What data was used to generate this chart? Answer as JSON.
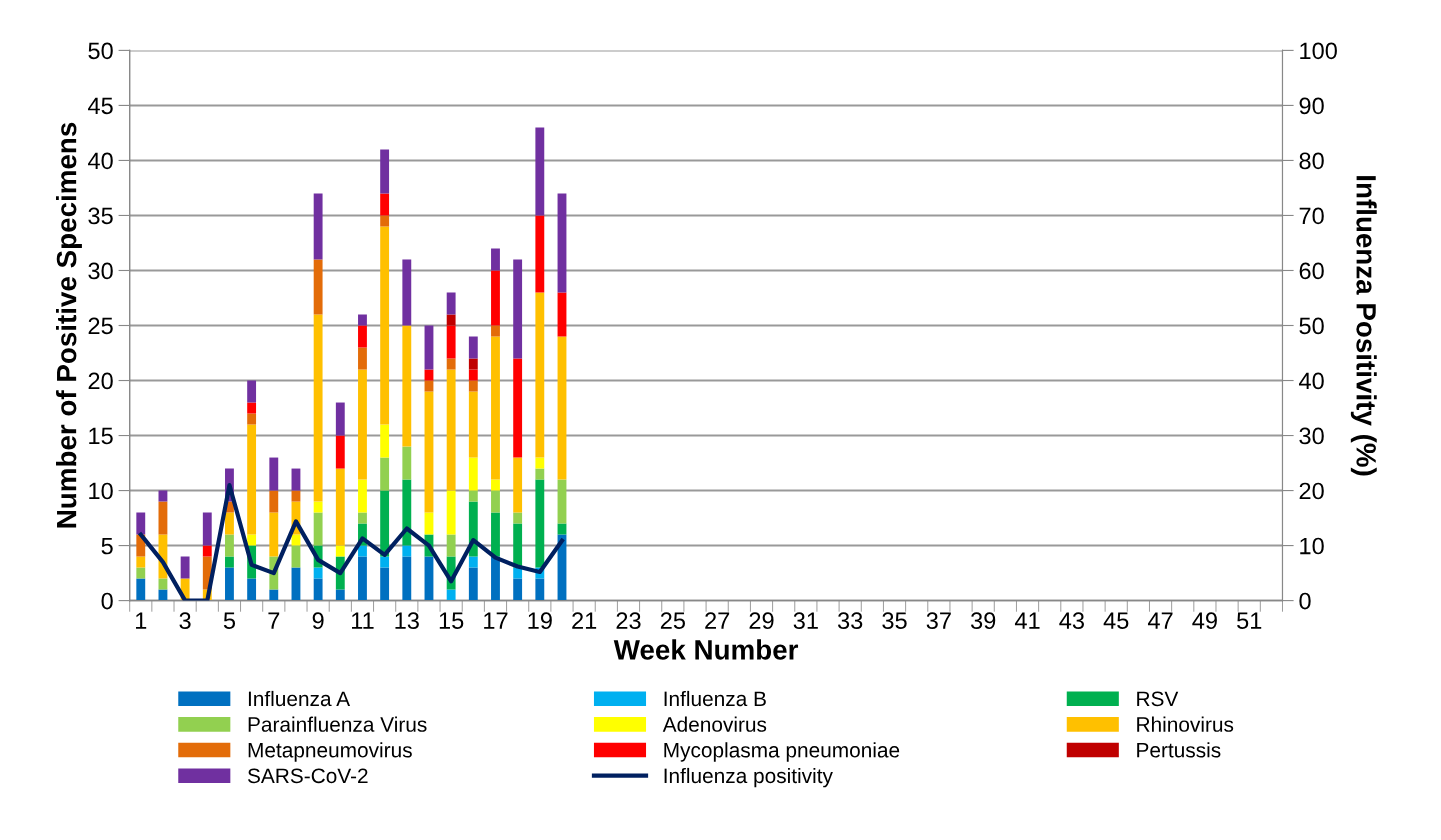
{
  "chart_data": {
    "type": "bar",
    "stacked": true,
    "xlabel": "Week Number",
    "ylabel": "Number of Positive Specimens",
    "y2label": "Influenza Positivity (%)",
    "categories": [
      "1",
      null,
      "3",
      null,
      "5",
      null,
      "7",
      null,
      "9",
      null,
      "11",
      null,
      "13",
      null,
      "15",
      null,
      "17",
      null,
      "19",
      null,
      "21",
      null,
      "23",
      null,
      "25",
      null,
      "27",
      null,
      "29",
      null,
      "31",
      null,
      "33",
      null,
      "35",
      null,
      "37",
      null,
      "39",
      null,
      "41",
      null,
      "43",
      null,
      "45",
      null,
      "47",
      null,
      "49",
      null,
      "51",
      null
    ],
    "ylim": [
      0,
      50
    ],
    "yticks": [
      0,
      5,
      10,
      15,
      20,
      25,
      30,
      35,
      40,
      45,
      50
    ],
    "y2lim": [
      0,
      100
    ],
    "y2ticks": [
      0,
      10,
      20,
      30,
      40,
      50,
      60,
      70,
      80,
      90,
      100
    ],
    "grid": "y",
    "legend": "bottom",
    "series": [
      {
        "name": "Influenza A",
        "color": "#0070c0",
        "values": [
          2,
          1,
          0,
          0,
          3,
          2,
          1,
          3,
          2,
          1,
          4,
          3,
          4,
          4,
          0,
          3,
          4,
          2,
          2,
          6,
          null,
          null,
          null,
          null,
          null,
          null,
          null,
          null,
          null,
          null,
          null,
          null,
          null,
          null,
          null,
          null,
          null,
          null,
          null,
          null,
          null,
          null,
          null,
          null,
          null,
          null,
          null,
          null,
          null,
          null,
          null,
          null
        ]
      },
      {
        "name": "Influenza B",
        "color": "#00b0f0",
        "values": [
          0,
          0,
          0,
          0,
          0,
          0,
          0,
          0,
          1,
          0,
          1,
          1,
          1,
          0,
          1,
          1,
          0,
          1,
          1,
          0,
          null,
          null,
          null,
          null,
          null,
          null,
          null,
          null,
          null,
          null,
          null,
          null,
          null,
          null,
          null,
          null,
          null,
          null,
          null,
          null,
          null,
          null,
          null,
          null,
          null,
          null,
          null,
          null,
          null,
          null,
          null,
          null
        ]
      },
      {
        "name": "RSV",
        "color": "#00b050",
        "values": [
          0,
          0,
          0,
          0,
          1,
          3,
          0,
          0,
          2,
          3,
          2,
          6,
          6,
          2,
          3,
          5,
          4,
          4,
          8,
          1,
          null,
          null,
          null,
          null,
          null,
          null,
          null,
          null,
          null,
          null,
          null,
          null,
          null,
          null,
          null,
          null,
          null,
          null,
          null,
          null,
          null,
          null,
          null,
          null,
          null,
          null,
          null,
          null,
          null,
          null,
          null,
          null
        ]
      },
      {
        "name": "Parainfluenza Virus",
        "color": "#92d050",
        "values": [
          1,
          1,
          0,
          0,
          2,
          0,
          3,
          2,
          3,
          0,
          1,
          3,
          3,
          0,
          2,
          1,
          2,
          1,
          1,
          4,
          null,
          null,
          null,
          null,
          null,
          null,
          null,
          null,
          null,
          null,
          null,
          null,
          null,
          null,
          null,
          null,
          null,
          null,
          null,
          null,
          null,
          null,
          null,
          null,
          null,
          null,
          null,
          null,
          null,
          null,
          null,
          null
        ]
      },
      {
        "name": "Adenovirus",
        "color": "#ffff00",
        "values": [
          0,
          0,
          0,
          0,
          0,
          1,
          0,
          1,
          1,
          1,
          3,
          3,
          0,
          2,
          4,
          3,
          1,
          0,
          1,
          0,
          null,
          null,
          null,
          null,
          null,
          null,
          null,
          null,
          null,
          null,
          null,
          null,
          null,
          null,
          null,
          null,
          null,
          null,
          null,
          null,
          null,
          null,
          null,
          null,
          null,
          null,
          null,
          null,
          null,
          null,
          null,
          null
        ]
      },
      {
        "name": "Rhinovirus",
        "color": "#ffc000",
        "values": [
          1,
          4,
          2,
          1,
          2,
          10,
          4,
          3,
          17,
          7,
          10,
          18,
          11,
          11,
          11,
          6,
          13,
          5,
          15,
          13,
          null,
          null,
          null,
          null,
          null,
          null,
          null,
          null,
          null,
          null,
          null,
          null,
          null,
          null,
          null,
          null,
          null,
          null,
          null,
          null,
          null,
          null,
          null,
          null,
          null,
          null,
          null,
          null,
          null,
          null,
          null,
          null
        ]
      },
      {
        "name": "Metapneumovirus",
        "color": "#e36c09",
        "values": [
          2,
          3,
          0,
          3,
          1,
          1,
          2,
          1,
          5,
          0,
          2,
          1,
          0,
          1,
          1,
          1,
          1,
          0,
          0,
          0,
          null,
          null,
          null,
          null,
          null,
          null,
          null,
          null,
          null,
          null,
          null,
          null,
          null,
          null,
          null,
          null,
          null,
          null,
          null,
          null,
          null,
          null,
          null,
          null,
          null,
          null,
          null,
          null,
          null,
          null,
          null,
          null
        ]
      },
      {
        "name": "Mycoplasma pneumoniae",
        "color": "#ff0000",
        "values": [
          0,
          0,
          0,
          1,
          0,
          1,
          0,
          0,
          0,
          3,
          2,
          2,
          0,
          1,
          3,
          1,
          5,
          9,
          7,
          4,
          null,
          null,
          null,
          null,
          null,
          null,
          null,
          null,
          null,
          null,
          null,
          null,
          null,
          null,
          null,
          null,
          null,
          null,
          null,
          null,
          null,
          null,
          null,
          null,
          null,
          null,
          null,
          null,
          null,
          null,
          null,
          null
        ]
      },
      {
        "name": "Pertussis",
        "color": "#c00000",
        "values": [
          0,
          0,
          0,
          0,
          0,
          0,
          0,
          0,
          0,
          0,
          0,
          0,
          0,
          0,
          1,
          1,
          0,
          0,
          0,
          0,
          null,
          null,
          null,
          null,
          null,
          null,
          null,
          null,
          null,
          null,
          null,
          null,
          null,
          null,
          null,
          null,
          null,
          null,
          null,
          null,
          null,
          null,
          null,
          null,
          null,
          null,
          null,
          null,
          null,
          null,
          null,
          null
        ]
      },
      {
        "name": "SARS-CoV-2",
        "color": "#7030a0",
        "values": [
          2,
          1,
          2,
          3,
          3,
          2,
          3,
          2,
          6,
          3,
          1,
          4,
          6,
          4,
          2,
          2,
          2,
          9,
          8,
          9,
          null,
          null,
          null,
          null,
          null,
          null,
          null,
          null,
          null,
          null,
          null,
          null,
          null,
          null,
          null,
          null,
          null,
          null,
          null,
          null,
          null,
          null,
          null,
          null,
          null,
          null,
          null,
          null,
          null,
          null,
          null,
          null
        ]
      },
      {
        "name": "Influenza positivity",
        "type": "line",
        "axis": "y2",
        "color": "#002060",
        "values": [
          12,
          7,
          0,
          0,
          21,
          6.5,
          5,
          14.4,
          7.4,
          5,
          11.3,
          8.3,
          13.1,
          10,
          3.5,
          11,
          7.8,
          6.2,
          5.2,
          10.9,
          null,
          null,
          null,
          null,
          null,
          null,
          null,
          null,
          null,
          null,
          null,
          null,
          null,
          null,
          null,
          null,
          null,
          null,
          null,
          null,
          null,
          null,
          null,
          null,
          null,
          null,
          null,
          null,
          null,
          null,
          null,
          null
        ]
      }
    ]
  }
}
